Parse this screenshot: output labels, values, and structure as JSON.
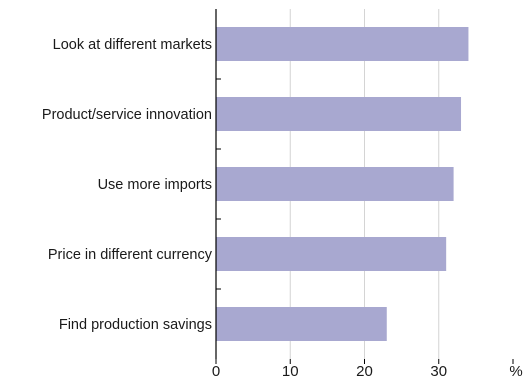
{
  "chart_data": {
    "type": "bar",
    "orientation": "horizontal",
    "categories": [
      "Look at different markets",
      "Product/service innovation",
      "Use more imports",
      "Price in different currency",
      "Find production savings"
    ],
    "values": [
      34,
      33,
      32,
      31,
      23
    ],
    "xlim": [
      0,
      40
    ],
    "xticks": [
      "0",
      "10",
      "20",
      "30"
    ],
    "xunit": "%",
    "grid": true,
    "bar_color": "#a8a8d0"
  }
}
